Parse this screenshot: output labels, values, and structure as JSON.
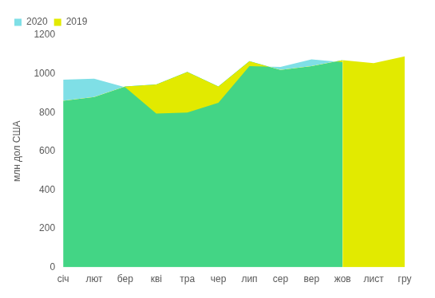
{
  "chart_data": {
    "type": "area",
    "y_label": "млн дол США",
    "categories": [
      "січ",
      "лют",
      "бер",
      "кві",
      "тра",
      "чер",
      "лип",
      "сер",
      "вер",
      "жов",
      "лист",
      "гру"
    ],
    "series": [
      {
        "name": "2019",
        "color": "#e2ea00",
        "values": [
          860,
          880,
          935,
          945,
          1010,
          935,
          1065,
          1020,
          1040,
          1070,
          1055,
          1090
        ]
      },
      {
        "name": "2020",
        "color": "#7fdfe6",
        "values": [
          970,
          975,
          930,
          795,
          800,
          850,
          1040,
          1035,
          1075,
          1060,
          null,
          null
        ]
      }
    ],
    "ylim": [
      0,
      1200
    ],
    "yticks": [
      0,
      200,
      400,
      600,
      800,
      1000,
      1200
    ],
    "grid": false,
    "legend": "top-left"
  }
}
